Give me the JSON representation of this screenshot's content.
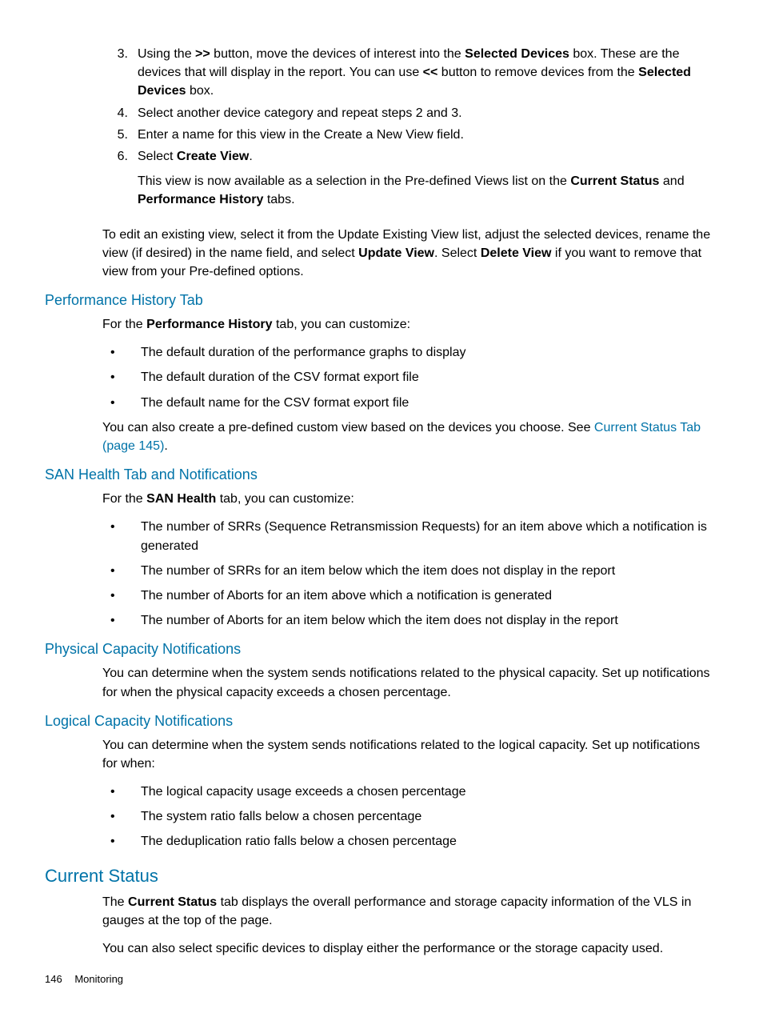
{
  "ordered": {
    "items": [
      {
        "num": "3.",
        "html": "Using the <b>&gt;&gt;</b> button, move the devices of interest into the <b>Selected Devices</b> box. These are the devices that will display in the report. You can use <b>&lt;&lt;</b> button to remove devices from the <b>Selected Devices</b> box."
      },
      {
        "num": "4.",
        "html": "Select another device category and repeat steps 2 and 3."
      },
      {
        "num": "5.",
        "html": "Enter a name for this view in the Create a New View field."
      },
      {
        "num": "6.",
        "html": "Select <b>Create View</b>.",
        "sub_html": "This view is now available as a selection in the Pre-defined Views list on the <b>Current Status</b> and <b>Performance History</b> tabs."
      }
    ]
  },
  "edit_view_html": "To edit an existing view, select it from the Update Existing View list, adjust the selected devices, rename the view (if desired) in the name field, and select <b>Update View</b>. Select <b>Delete View</b> if you want to remove that view from your Pre-defined options.",
  "perf_history": {
    "heading": "Performance History Tab",
    "intro_html": "For the <b>Performance History</b> tab, you can customize:",
    "bullets": [
      "The default duration of the performance graphs to display",
      "The default duration of the CSV format export file",
      "The default name for the CSV format export file"
    ],
    "closing_html": "You can also create a pre-defined custom view based on the devices you choose. See <span class=\"link\">Current Status Tab (page 145)</span>."
  },
  "san_health": {
    "heading": "SAN Health Tab and Notifications",
    "intro_html": "For the <b>SAN Health</b> tab, you can customize:",
    "bullets": [
      "The number of SRRs (Sequence Retransmission Requests) for an item above which a notification is generated",
      "The number of SRRs for an item below which the item does not display in the report",
      "The number of Aborts for an item above which a notification is generated",
      "The number of Aborts for an item below which the item does not display in the report"
    ]
  },
  "physical_capacity": {
    "heading": "Physical Capacity Notifications",
    "para": "You can determine when the system sends notifications related to the physical capacity. Set up notifications for when the physical capacity exceeds a chosen percentage."
  },
  "logical_capacity": {
    "heading": "Logical Capacity Notifications",
    "intro": "You can determine when the system sends notifications related to the logical capacity. Set up notifications for when:",
    "bullets": [
      "The logical capacity usage exceeds a chosen percentage",
      "The system ratio falls below a chosen percentage",
      "The deduplication ratio falls below a chosen percentage"
    ]
  },
  "current_status": {
    "heading": "Current Status",
    "para1_html": "The <b>Current Status</b> tab displays the overall performance and storage capacity information of the VLS in gauges at the top of the page.",
    "para2": "You can also select specific devices to display either the performance or the storage capacity used."
  },
  "footer": {
    "page": "146",
    "section": "Monitoring"
  }
}
